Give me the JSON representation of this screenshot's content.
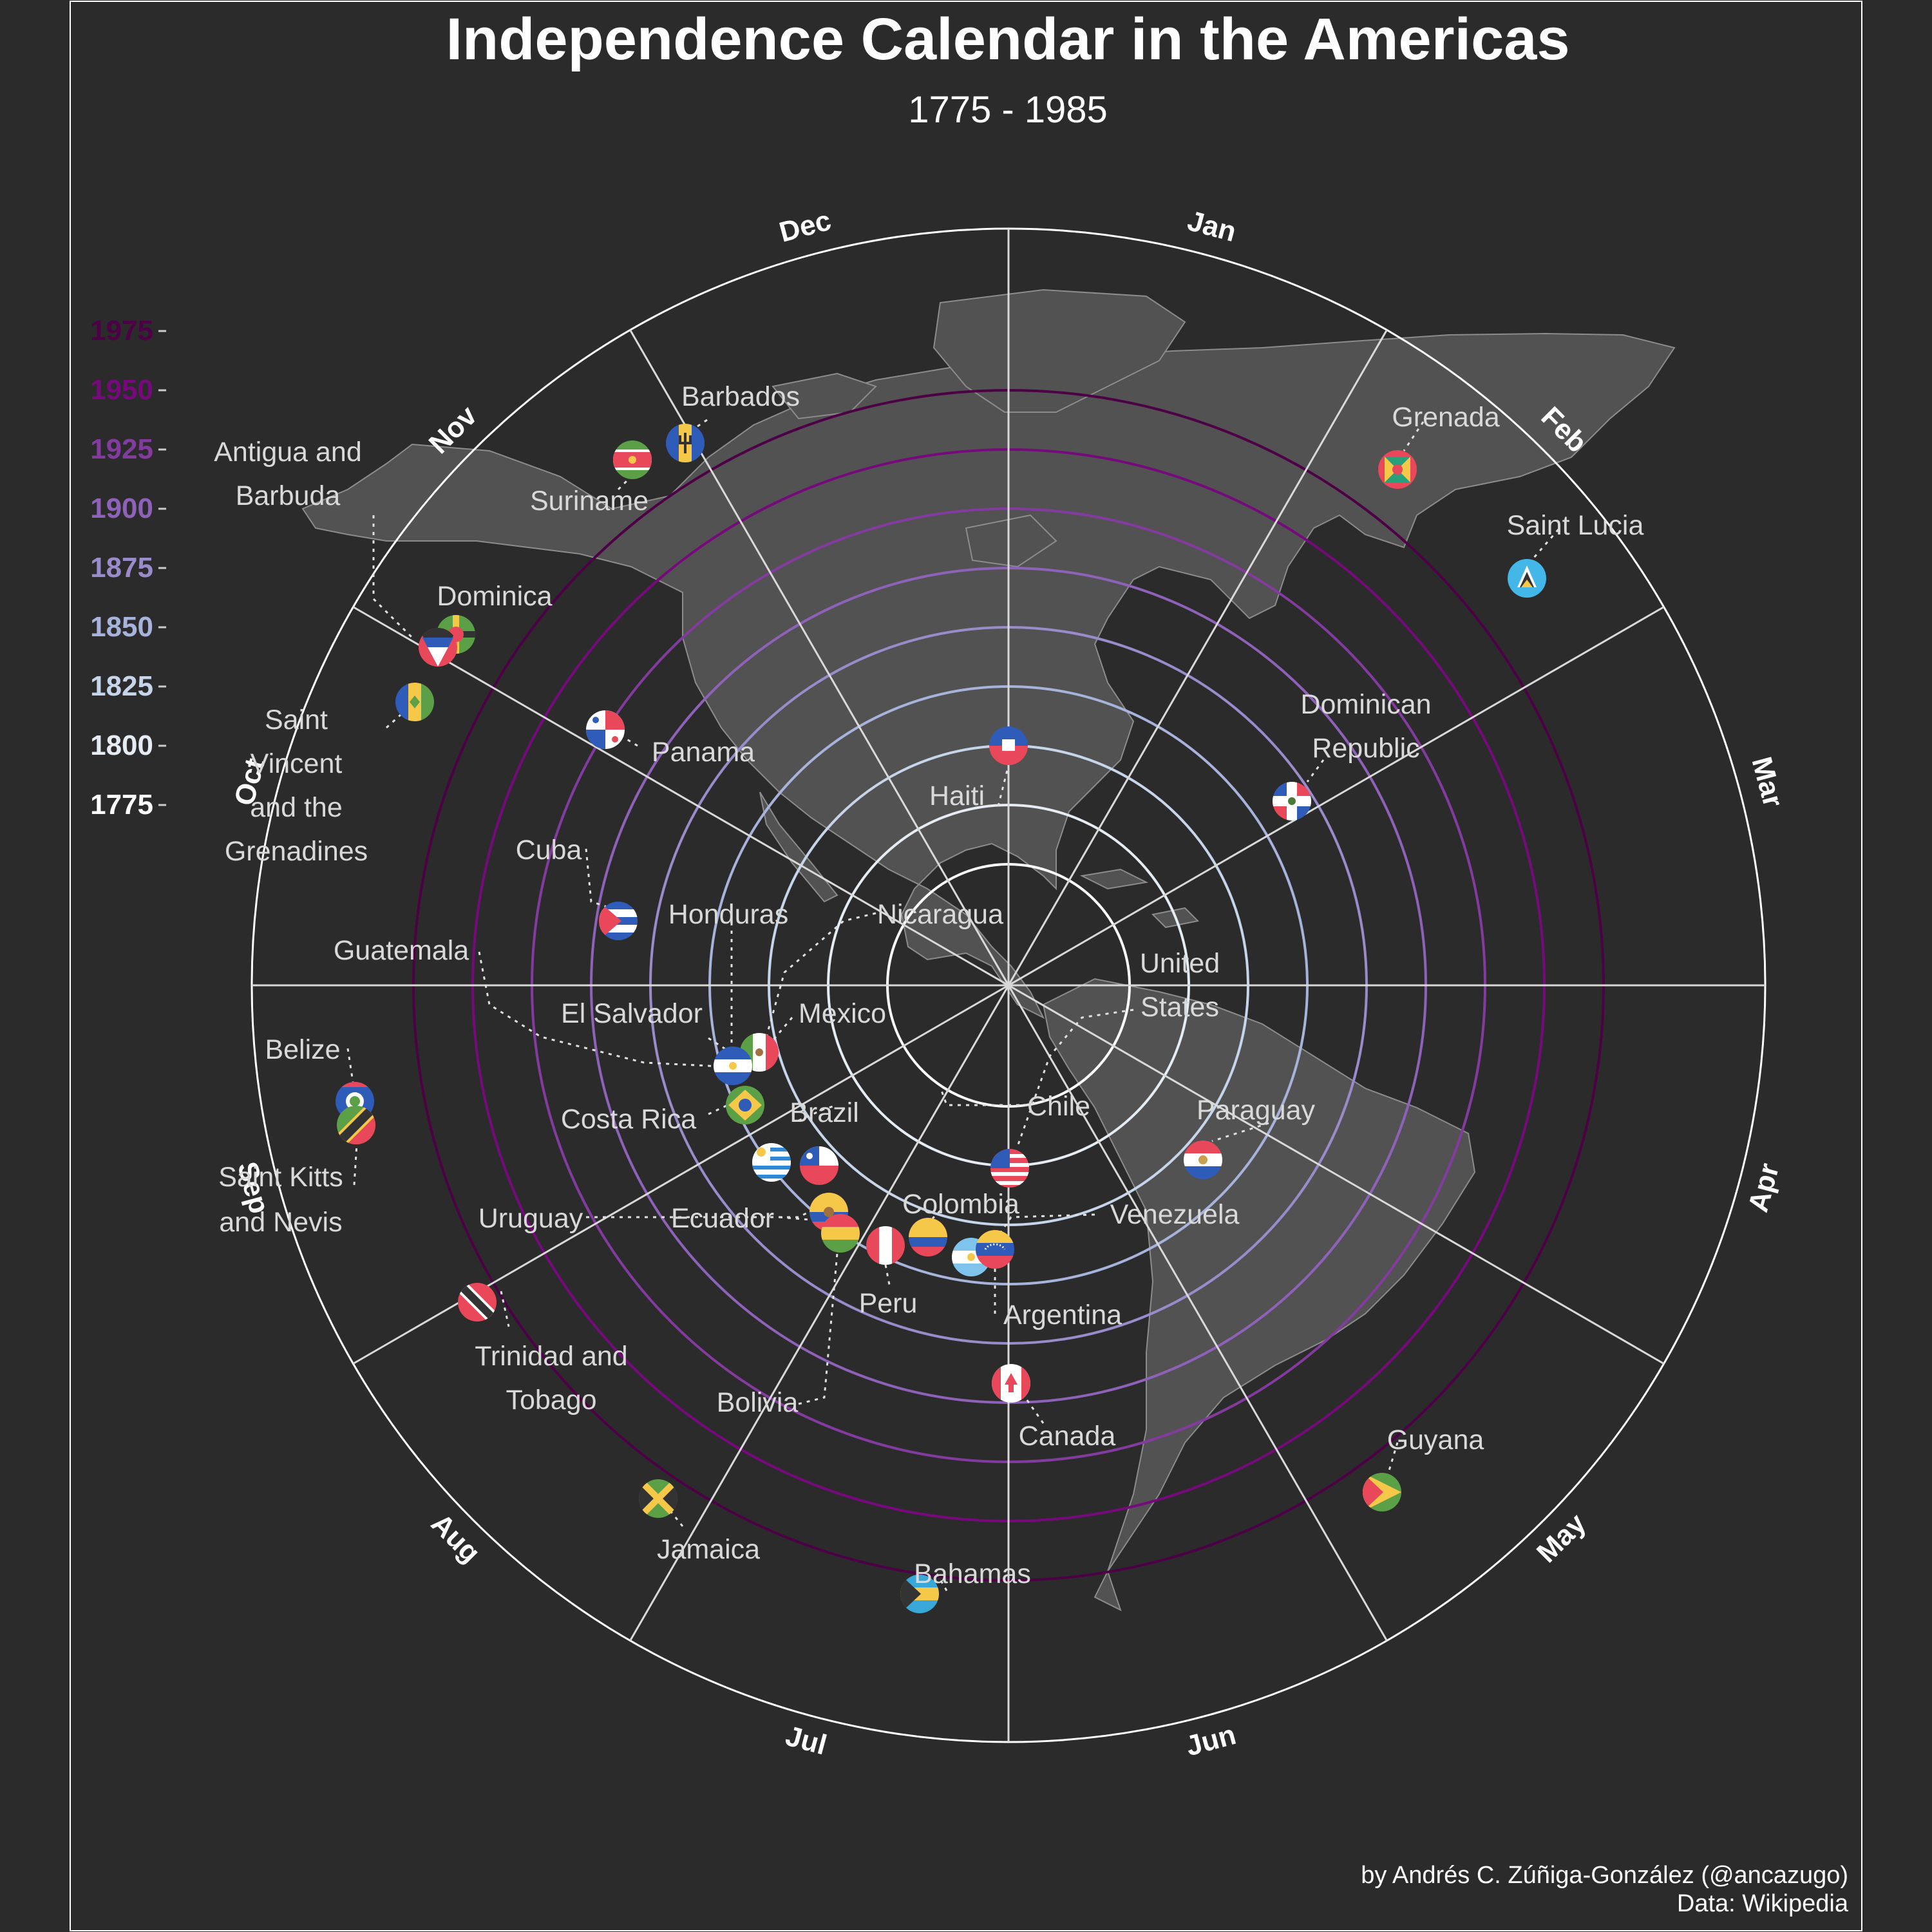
{
  "header": {
    "title": "Independence Calendar in the Americas",
    "subtitle": "1775 - 1985"
  },
  "caption": {
    "author": "by Andrés C. Zúñiga-González (@ancazugo)",
    "source": "Data: Wikipedia"
  },
  "chart_data": {
    "type": "scatter",
    "title": "Independence Calendar in the Americas",
    "subtitle": "1775 - 1985",
    "coordinate_system": "polar",
    "angle_axis": {
      "unit": "month",
      "labels": [
        "Jan",
        "Feb",
        "Mar",
        "Apr",
        "May",
        "Jun",
        "Jul",
        "Aug",
        "Sep",
        "Oct",
        "Nov",
        "Dec"
      ]
    },
    "radial_axis": {
      "unit": "year",
      "range": [
        1775,
        1985
      ],
      "tick_labels": [
        "1775",
        "1800",
        "1825",
        "1850",
        "1875",
        "1900",
        "1925",
        "1950",
        "1975"
      ],
      "ring_colors": [
        "#ffffff",
        "#e5ecf4",
        "#c6d5ea",
        "#a8b3db",
        "#9a8ccb",
        "#8e62b8",
        "#843b9f",
        "#760a7c",
        "#4d0046"
      ]
    },
    "background": "#2b2b2b",
    "points": [
      {
        "country": "United States",
        "year": 1776,
        "month": 7.1,
        "flag": "us-flag"
      },
      {
        "country": "Haiti",
        "year": 1804,
        "month": 1.0,
        "flag": "haiti-flag"
      },
      {
        "country": "Paraguay",
        "year": 1811,
        "month": 5.5,
        "flag": "paraguay-flag"
      },
      {
        "country": "Venezuela",
        "year": 1811,
        "month": 7.2,
        "flag": "venezuela-flag"
      },
      {
        "country": "Colombia",
        "year": 1810,
        "month": 7.7,
        "flag": "colombia-flag"
      },
      {
        "country": "Argentina",
        "year": 1816,
        "month": 7.3,
        "flag": "argentina-flag"
      },
      {
        "country": "Chile",
        "year": 1818,
        "month": 8.0,
        "flag": "chile-flag"
      },
      {
        "country": "Peru",
        "year": 1821,
        "month": 7.9,
        "flag": "peru-flag"
      },
      {
        "country": "Ecuador",
        "year": 1809,
        "month": 8.3,
        "flag": "ecuador-flag"
      },
      {
        "country": "Bolivia",
        "year": 1825,
        "month": 8.2,
        "flag": "bolivia-flag"
      },
      {
        "country": "Brazil",
        "year": 1822,
        "month": 9.2,
        "flag": "brazil-flag"
      },
      {
        "country": "Mexico",
        "year": 1810,
        "month": 9.5,
        "flag": "mexico-flag"
      },
      {
        "country": "Guatemala",
        "year": 1821,
        "month": 9.5,
        "flag": "central-america-flag"
      },
      {
        "country": "Honduras",
        "year": 1821,
        "month": 9.5,
        "flag": "honduras-flag"
      },
      {
        "country": "El Salvador",
        "year": 1821,
        "month": 9.5,
        "flag": "el-salvador-flag"
      },
      {
        "country": "Nicaragua",
        "year": 1821,
        "month": 9.5,
        "flag": "nicaragua-flag"
      },
      {
        "country": "Costa Rica",
        "year": 1821,
        "month": 9.5,
        "flag": "costa-rica-flag"
      },
      {
        "country": "Uruguay",
        "year": 1825,
        "month": 8.8,
        "flag": "uruguay-flag"
      },
      {
        "country": "Dominican Republic",
        "year": 1844,
        "month": 2.9,
        "flag": "dominican-republic-flag"
      },
      {
        "country": "Canada",
        "year": 1867,
        "month": 7.0,
        "flag": "canada-flag"
      },
      {
        "country": "Cuba",
        "year": 1902,
        "month": 5.6,
        "flag": "cuba-flag"
      },
      {
        "country": "Panama",
        "year": 1903,
        "month": 11.1,
        "flag": "panama-flag"
      },
      {
        "country": "Jamaica",
        "year": 1962,
        "month": 8.2,
        "flag": "jamaica-flag"
      },
      {
        "country": "Trinidad and Tobago",
        "year": 1962,
        "month": 8.9,
        "flag": "trinidad-flag"
      },
      {
        "country": "Barbados",
        "year": 1966,
        "month": 11.9,
        "flag": "barbados-flag"
      },
      {
        "country": "Guyana",
        "year": 1966,
        "month": 5.9,
        "flag": "guyana-flag"
      },
      {
        "country": "Bahamas",
        "year": 1973,
        "month": 7.3,
        "flag": "bahamas-flag"
      },
      {
        "country": "Grenada",
        "year": 1974,
        "month": 2.2,
        "flag": "grenada-flag"
      },
      {
        "country": "Suriname",
        "year": 1975,
        "month": 11.8,
        "flag": "suriname-flag"
      },
      {
        "country": "Dominica",
        "year": 1978,
        "month": 11.1,
        "flag": "dominica-flag"
      },
      {
        "country": "Saint Lucia",
        "year": 1979,
        "month": 2.7,
        "flag": "saint-lucia-flag"
      },
      {
        "country": "Saint Vincent and the Grenadines",
        "year": 1979,
        "month": 10.9,
        "flag": "svg-flag"
      },
      {
        "country": "Belize",
        "year": 1981,
        "month": 9.7,
        "flag": "belize-flag"
      },
      {
        "country": "Antigua and Barbuda",
        "year": 1981,
        "month": 11.0,
        "flag": "antigua-flag"
      },
      {
        "country": "Saint Kitts and Nevis",
        "year": 1983,
        "month": 9.6,
        "flag": "saint-kitts-flag"
      }
    ]
  },
  "labels": {
    "barbados": "Barbados",
    "suriname": "Suriname",
    "antigua_1": "Antigua and",
    "antigua_2": "Barbuda",
    "dominica": "Dominica",
    "svg_1": "Saint",
    "svg_2": "Vincent",
    "svg_3": "and the",
    "svg_4": "Grenadines",
    "panama": "Panama",
    "haiti": "Haiti",
    "grenada": "Grenada",
    "saint_lucia": "Saint Lucia",
    "dominican_1": "Dominican",
    "dominican_2": "Republic",
    "cuba": "Cuba",
    "honduras": "Honduras",
    "nicaragua": "Nicaragua",
    "guatemala": "Guatemala",
    "el_salvador": "El Salvador",
    "mexico": "Mexico",
    "united_states_1": "United",
    "united_states_2": "States",
    "belize": "Belize",
    "costa_rica": "Costa Rica",
    "brazil": "Brazil",
    "chile": "Chile",
    "paraguay": "Paraguay",
    "saint_kitts_1": "Saint Kitts",
    "saint_kitts_2": "and Nevis",
    "uruguay": "Uruguay",
    "ecuador": "Ecuador",
    "colombia": "Colombia",
    "venezuela": "Venezuela",
    "peru": "Peru",
    "argentina": "Argentina",
    "trinidad_1": "Trinidad and",
    "trinidad_2": "Tobago",
    "bolivia": "Bolivia",
    "canada": "Canada",
    "guyana": "Guyana",
    "jamaica": "Jamaica",
    "bahamas": "Bahamas"
  }
}
